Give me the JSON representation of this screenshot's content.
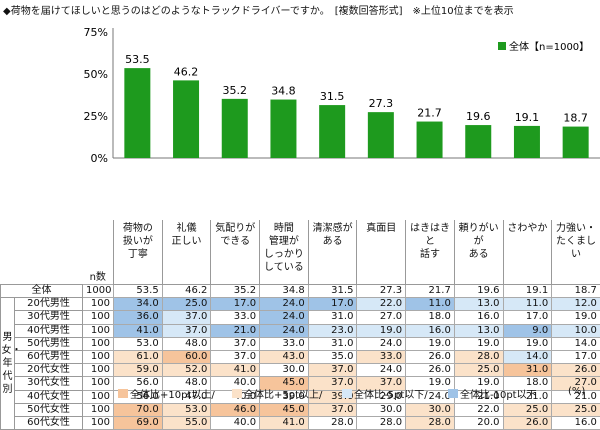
{
  "title": "◆荷物を届けてほしいと思うのはどのようなトラックドライバーですか。　[複数回答形式]　※上位10位までを表示",
  "chart_data": {
    "type": "bar",
    "categories": [
      "荷物の扱いが丁寧",
      "礼儀正しい",
      "気配りができる",
      "時間管理がしっかりしている",
      "清潔感がある",
      "真面目",
      "はきはきと話す",
      "頼りがいがある",
      "さわやか",
      "力強い・たくましい"
    ],
    "category_lines": [
      [
        "荷物の",
        "扱いが",
        "丁寧"
      ],
      [
        "礼儀",
        "正しい"
      ],
      [
        "気配りが",
        "できる"
      ],
      [
        "時間",
        "管理が",
        "しっかり",
        "している"
      ],
      [
        "清潔感が",
        "ある"
      ],
      [
        "真面目"
      ],
      [
        "はきはきと",
        "話す"
      ],
      [
        "頼りがいが",
        "ある"
      ],
      [
        "さわやか"
      ],
      [
        "力強い・",
        "たくましい"
      ]
    ],
    "series": [
      {
        "name": "全体【n=1000】",
        "values": [
          53.5,
          46.2,
          35.2,
          34.8,
          31.5,
          27.3,
          21.7,
          19.6,
          19.1,
          18.7
        ]
      }
    ],
    "ylim": [
      0,
      75
    ],
    "yticks": [
      "0%",
      "25%",
      "50%",
      "75%"
    ],
    "bar_color": "#1e9a1e",
    "legend_position": "top-right"
  },
  "table": {
    "n_header": "n数",
    "side_label": "男女・年代別",
    "total_row": {
      "label": "全体",
      "n": "1000",
      "values": [
        "53.5",
        "46.2",
        "35.2",
        "34.8",
        "31.5",
        "27.3",
        "21.7",
        "19.6",
        "19.1",
        "18.7"
      ]
    },
    "rows": [
      {
        "label": "20代男性",
        "n": "100",
        "values": [
          "34.0",
          "25.0",
          "17.0",
          "24.0",
          "17.0",
          "22.0",
          "11.0",
          "13.0",
          "11.0",
          "12.0"
        ]
      },
      {
        "label": "30代男性",
        "n": "100",
        "values": [
          "36.0",
          "37.0",
          "33.0",
          "24.0",
          "31.0",
          "27.0",
          "18.0",
          "16.0",
          "17.0",
          "19.0"
        ]
      },
      {
        "label": "40代男性",
        "n": "100",
        "values": [
          "41.0",
          "37.0",
          "21.0",
          "24.0",
          "23.0",
          "19.0",
          "16.0",
          "13.0",
          "9.0",
          "10.0"
        ]
      },
      {
        "label": "50代男性",
        "n": "100",
        "values": [
          "53.0",
          "48.0",
          "37.0",
          "33.0",
          "31.0",
          "24.0",
          "19.0",
          "19.0",
          "19.0",
          "14.0"
        ]
      },
      {
        "label": "60代男性",
        "n": "100",
        "values": [
          "61.0",
          "60.0",
          "37.0",
          "43.0",
          "35.0",
          "33.0",
          "26.0",
          "28.0",
          "14.0",
          "17.0"
        ]
      },
      {
        "label": "20代女性",
        "n": "100",
        "values": [
          "59.0",
          "52.0",
          "41.0",
          "30.0",
          "37.0",
          "24.0",
          "26.0",
          "25.0",
          "31.0",
          "26.0"
        ]
      },
      {
        "label": "30代女性",
        "n": "100",
        "values": [
          "56.0",
          "48.0",
          "40.0",
          "45.0",
          "37.0",
          "37.0",
          "19.0",
          "19.0",
          "18.0",
          "27.0"
        ]
      },
      {
        "label": "40代女性",
        "n": "100",
        "values": [
          "56.0",
          "47.0",
          "40.0",
          "39.0",
          "39.0",
          "29.0",
          "24.0",
          "21.0",
          "21.0",
          "21.0"
        ]
      },
      {
        "label": "50代女性",
        "n": "100",
        "values": [
          "70.0",
          "53.0",
          "46.0",
          "45.0",
          "37.0",
          "30.0",
          "30.0",
          "22.0",
          "25.0",
          "25.0"
        ]
      },
      {
        "label": "60代女性",
        "n": "100",
        "values": [
          "69.0",
          "55.0",
          "40.0",
          "41.0",
          "28.0",
          "28.0",
          "28.0",
          "20.0",
          "26.0",
          "16.0"
        ]
      }
    ],
    "highlight_rules": {
      "hi10": 10,
      "hi5": 5,
      "lo5": -5,
      "lo10": -10
    },
    "colors": {
      "hi10": "#f6c49b",
      "hi5": "#fbe2c9",
      "lo5": "#d6e8f7",
      "lo10": "#9fc3e7"
    }
  },
  "footer": {
    "hi10": "全体比+10pt以上/",
    "hi5": "全体比+5pt以上/",
    "lo5": "全体比-5pt以下/",
    "lo10": "全体比-10pt以下",
    "unit": "(%)"
  }
}
